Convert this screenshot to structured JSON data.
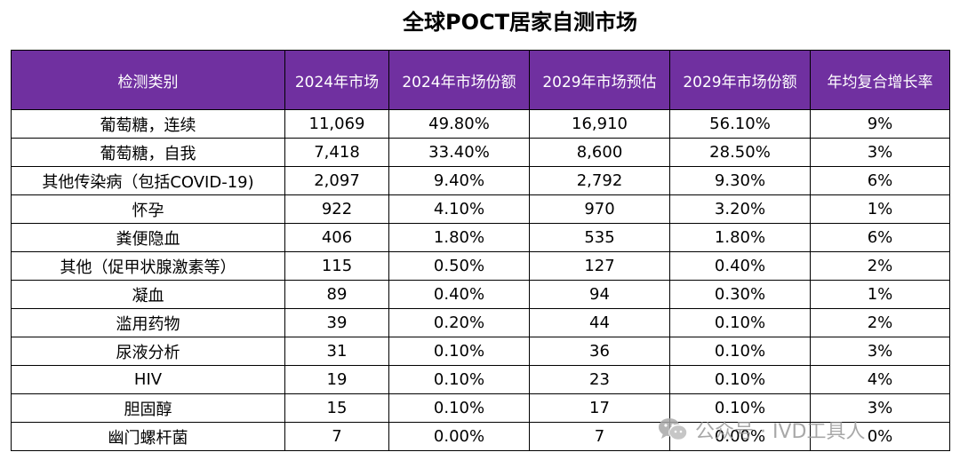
{
  "title": "全球POCT居家自测市场",
  "table": {
    "headers": [
      "检测类别",
      "2024年市场",
      "2024年市场份额",
      "2029年市场预估",
      "2029年市场份额",
      "年均复合增长率"
    ],
    "rows": [
      [
        "葡萄糖，连续",
        "11,069",
        "49.80%",
        "16,910",
        "56.10%",
        "9%"
      ],
      [
        "葡萄糖，自我",
        "7,418",
        "33.40%",
        "8,600",
        "28.50%",
        "3%"
      ],
      [
        "其他传染病（包括COVID-19)",
        "2,097",
        "9.40%",
        "2,792",
        "9.30%",
        "6%"
      ],
      [
        "怀孕",
        "922",
        "4.10%",
        "970",
        "3.20%",
        "1%"
      ],
      [
        "粪便隐血",
        "406",
        "1.80%",
        "535",
        "1.80%",
        "6%"
      ],
      [
        "其他（促甲状腺激素等）",
        "115",
        "0.50%",
        "127",
        "0.40%",
        "2%"
      ],
      [
        "凝血",
        "89",
        "0.40%",
        "94",
        "0.30%",
        "1%"
      ],
      [
        "滥用药物",
        "39",
        "0.20%",
        "44",
        "0.10%",
        "2%"
      ],
      [
        "尿液分析",
        "31",
        "0.10%",
        "36",
        "0.10%",
        "3%"
      ],
      [
        "HIV",
        "19",
        "0.10%",
        "23",
        "0.10%",
        "4%"
      ],
      [
        "胆固醇",
        "15",
        "0.10%",
        "17",
        "0.10%",
        "3%"
      ],
      [
        "幽门螺杆菌",
        "7",
        "0.00%",
        "7",
        "0.00%",
        "0%"
      ]
    ]
  },
  "watermark": {
    "text": "公众号 · IVD工具人",
    "icon": "wechat-icon",
    "color": "#9a9a9a"
  },
  "colors": {
    "header_bg": "#7030a0",
    "header_text": "#ffffff",
    "border": "#000000"
  }
}
